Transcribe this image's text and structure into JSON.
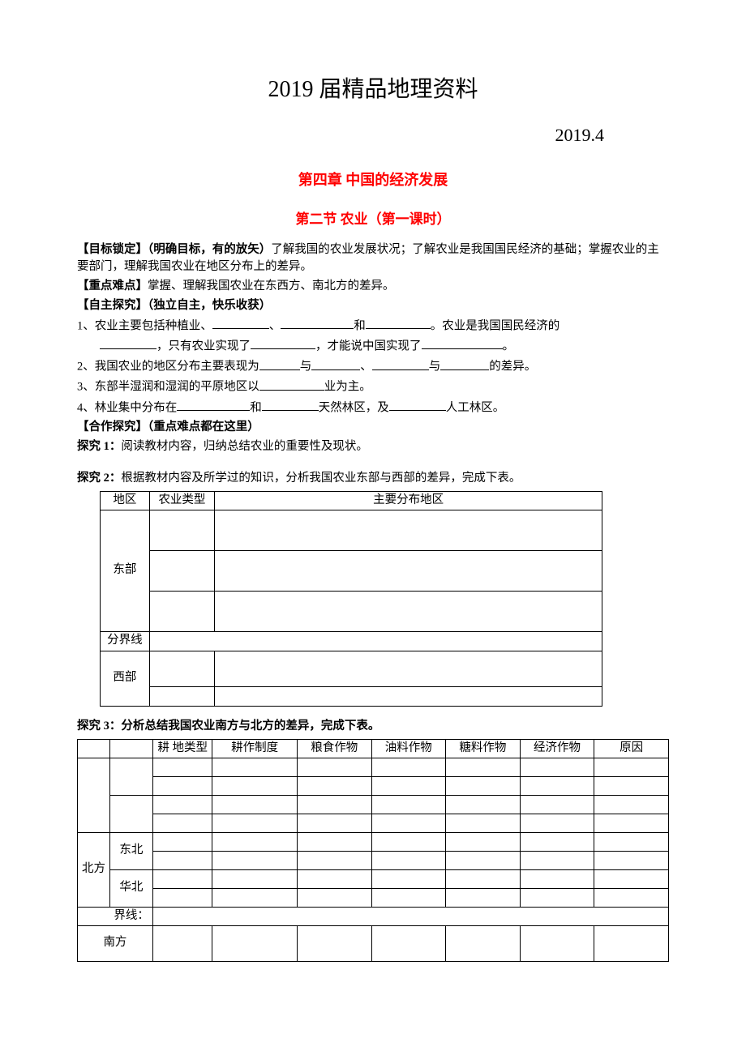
{
  "doc": {
    "main_title": "2019 届精品地理资料",
    "date": "2019.4",
    "chapter": "第四章  中国的经济发展",
    "section": "第二节  农业（第一课时）",
    "p_target_label": "【目标锁定】（明确目标，有的放矢）",
    "p_target_body": "了解我国的农业发展状况；了解农业是我国国民经济的基础；掌握农业的主要部门，理解我国农业在地区分布上的差异。",
    "p_keypoint_label": "【重点难点】",
    "p_keypoint_body": "掌握、理解我国农业在东西方、南北方的差异。",
    "p_self_label": "【自主探究】（独立自主，快乐收获）",
    "q1_a": "1、农业主要包括种植业、",
    "q1_b": "、",
    "q1_c": "和",
    "q1_d": "。农业是我国国民经济的",
    "q1_e": "，只有农业实现了",
    "q1_f": "，才能说中国实现了",
    "q1_g": "。",
    "q2_a": "2、我国农业的地区分布主要表现为",
    "q2_b": "与",
    "q2_c": "、",
    "q2_d": "与",
    "q2_e": "的差异。",
    "q3_a": "3、东部半湿润和湿润的平原地区以",
    "q3_b": "业为主。",
    "q4_a": "4、林业集中分布在",
    "q4_b": "和",
    "q4_c": "天然林区，及",
    "q4_d": "人工林区。",
    "p_coop_label": "【合作探究】（重点难点都在这里）",
    "tq1_label": "探究 1：",
    "tq1_body": "阅读教材内容，归纳总结农业的重要性及现状。",
    "tq2_label": "探究 2：",
    "tq2_body": "根据教材内容及所学过的知识，分析我国农业东部与西部的差异，完成下表。",
    "tq3_label": "探究 3：分析总结我国农业南方与北方的差异，完成下表。",
    "t1": {
      "h_region": "地区",
      "h_type": "农业类型",
      "h_dist": "主要分布地区",
      "east": "东部",
      "divider": "分界线",
      "west": "西部"
    },
    "t2": {
      "h_land": "耕 地类型",
      "h_sys": "耕作制度",
      "h_grain": "粮食作物",
      "h_oil": "油料作物",
      "h_sugar": "糖料作物",
      "h_econ": "经济作物",
      "h_reason": "原因",
      "north": "北方",
      "ne": "东北",
      "nc": "华北",
      "boundary": "界线：",
      "south": "南方"
    }
  }
}
